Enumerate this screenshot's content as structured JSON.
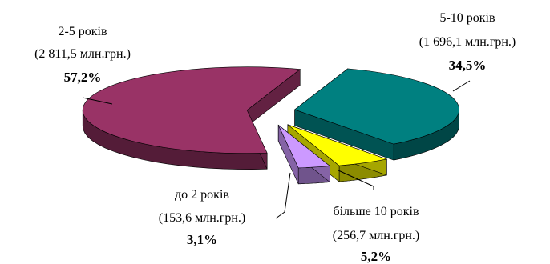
{
  "chart_data": {
    "type": "pie",
    "categories": [
      "2-5 років",
      "5-10 років",
      "більше 10 років",
      "до 2 років"
    ],
    "values": [
      2811.5,
      1696.1,
      256.7,
      153.6
    ],
    "percent_labels": [
      "57,2%",
      "34,5%",
      "5,2%",
      "3,1%"
    ],
    "value_labels": [
      "(2 811,5 млн.грн.)",
      "(1 696,1 млн.грн.)",
      "(256,7 млн.грн.)",
      "(153,6 млн.грн.)"
    ],
    "colors": [
      "#993366",
      "#008080",
      "#ffff00",
      "#cc99ff"
    ],
    "exploded": true,
    "three_d": true
  }
}
